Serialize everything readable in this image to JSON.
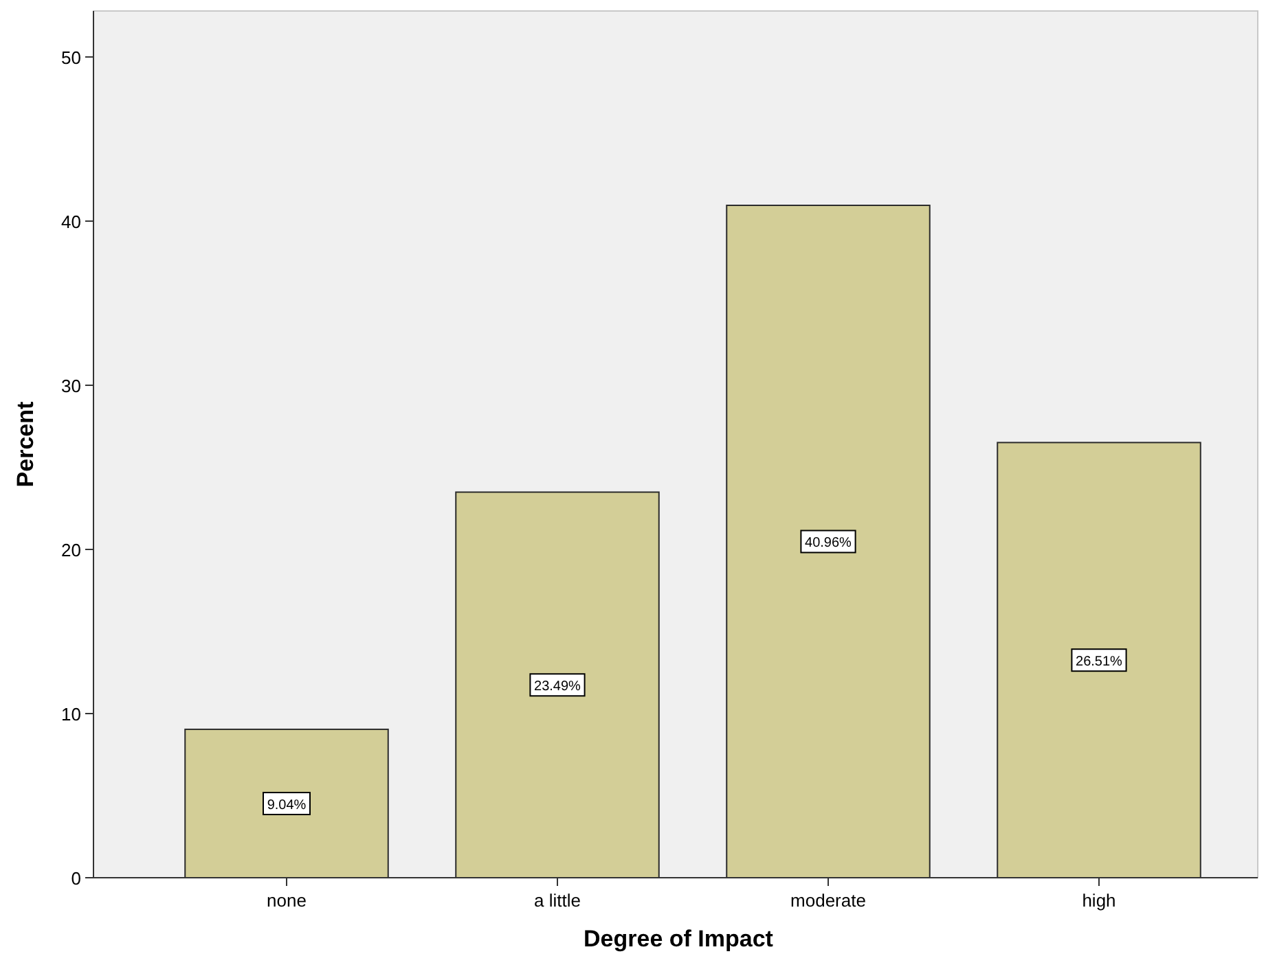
{
  "chart_data": {
    "type": "bar",
    "xlabel": "Degree of Impact",
    "ylabel": "Percent",
    "categories": [
      "none",
      "a little",
      "moderate",
      "high"
    ],
    "values": [
      9.04,
      23.49,
      40.96,
      26.51
    ],
    "value_labels": [
      "9.04%",
      "23.49%",
      "40.96%",
      "26.51%"
    ],
    "color": "#d3ce97",
    "ylim": [
      0,
      52.8
    ],
    "yticks": [
      0,
      10,
      20,
      30,
      40,
      50
    ],
    "grid": false
  }
}
